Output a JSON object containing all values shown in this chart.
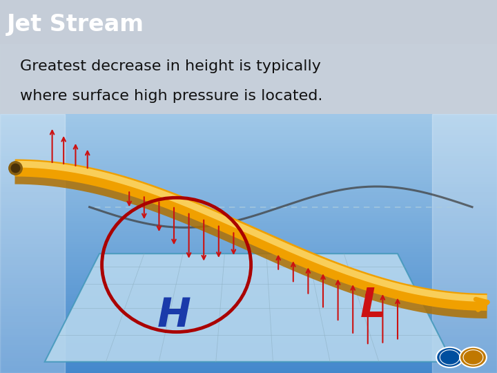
{
  "title": "Jet Stream",
  "subtitle_line1": "Greatest decrease in height is typically",
  "subtitle_line2": "where surface high pressure is located.",
  "title_bg_color": "#2d3a8c",
  "title_text_color": "#ffffff",
  "subtitle_bg_color": "#d4dce8",
  "subtitle_text_color": "#111111",
  "H_color": "#1a3aaa",
  "L_color": "#cc1111",
  "circle_color": "#aa0000",
  "arrow_color": "#cc1111",
  "jet_color": "#f0a000",
  "jet_shadow": "#b07000",
  "jet_highlight": "#ffe88a",
  "wave_color": "#555555",
  "ref_line_color": "#ccddee",
  "map_face": "#b8d8ee",
  "map_edge": "#4499bb",
  "sky_top": "#4488cc",
  "sky_bottom": "#a0c8e8",
  "cloud_color": "#c8d4de",
  "logo1_color": "#004f9f",
  "logo2_color": "#c07800",
  "bg_color": "#c5cdd8"
}
